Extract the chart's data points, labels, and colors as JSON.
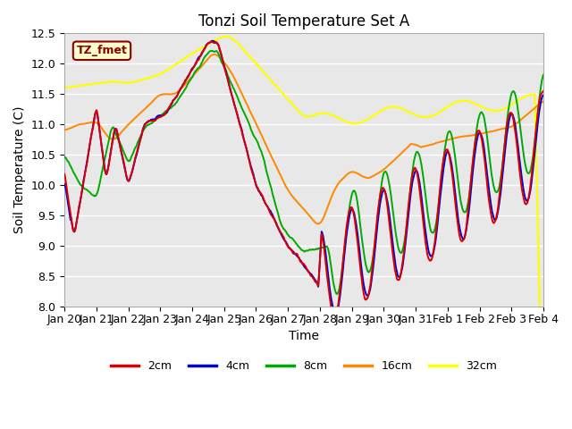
{
  "title": "Tonzi Soil Temperature Set A",
  "xlabel": "Time",
  "ylabel": "Soil Temperature (C)",
  "ylim_min": 8.0,
  "ylim_max": 12.5,
  "annotation": "TZ_fmet",
  "plot_bg_color": "#e8e8e8",
  "fig_bg_color": "#ffffff",
  "grid_color": "#ffffff",
  "colors": {
    "2cm": "#dd0000",
    "4cm": "#0000cc",
    "8cm": "#00aa00",
    "16cm": "#ff8800",
    "32cm": "#ffff00"
  },
  "tick_labels": [
    "Jan 20",
    "Jan 21",
    "Jan 22",
    "Jan 23",
    "Jan 24",
    "Jan 25",
    "Jan 26",
    "Jan 27",
    "Jan 28",
    "Jan 29",
    "Jan 30",
    "Jan 31",
    "Feb 1",
    "Feb 2",
    "Feb 3",
    "Feb 4"
  ],
  "yticks": [
    8.0,
    8.5,
    9.0,
    9.5,
    10.0,
    10.5,
    11.0,
    11.5,
    12.0,
    12.5
  ],
  "n_days": 15,
  "n_points": 720
}
